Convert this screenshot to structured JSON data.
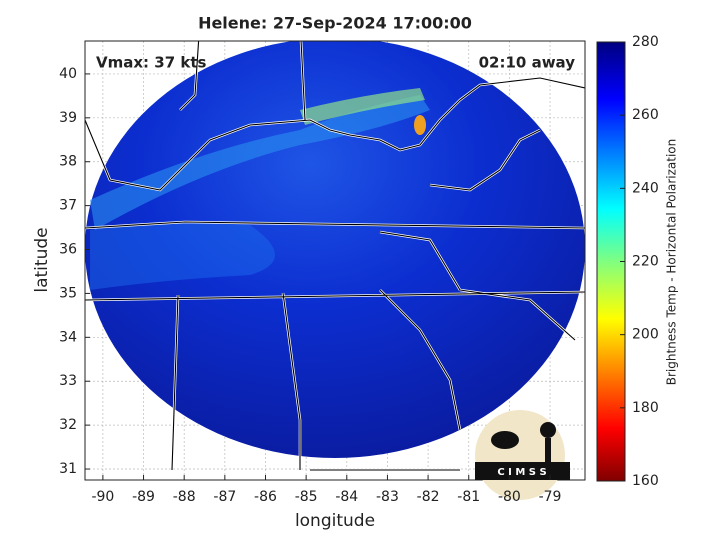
{
  "chart_data": {
    "type": "map",
    "title": "Helene: 27-Sep-2024 17:00:00",
    "xlabel": "longitude",
    "ylabel": "latitude",
    "xlim": [
      -90.44,
      -78.14
    ],
    "ylim": [
      30.75,
      40.75
    ],
    "xticks": [
      -90,
      -89,
      -88,
      -87,
      -86,
      -85,
      -84,
      -83,
      -82,
      -81,
      -80,
      -79
    ],
    "yticks": [
      31,
      32,
      33,
      34,
      35,
      36,
      37,
      38,
      39,
      40
    ],
    "grid": true,
    "annotations": [
      "Vmax: 37 kts",
      "02:10 away"
    ],
    "logo_text": "C I M S S",
    "colorbar": {
      "label": "Brightness Temp - Horizontal Polarization",
      "ylim": [
        160,
        280
      ],
      "yticks": [
        160,
        180,
        200,
        220,
        240,
        260,
        280
      ]
    }
  }
}
